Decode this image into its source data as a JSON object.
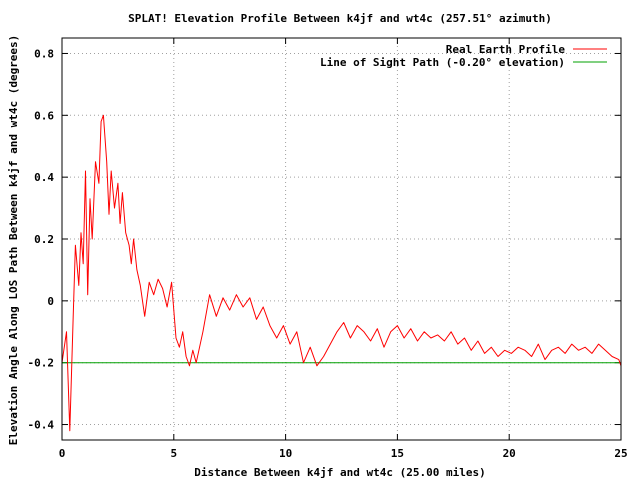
{
  "chart_data": {
    "type": "line",
    "title": "SPLAT! Elevation Profile Between k4jf and wt4c (257.51° azimuth)",
    "xlabel": "Distance Between k4jf and wt4c (25.00 miles)",
    "ylabel": "Elevation Angle Along LOS Path Between k4jf and wt4c (degrees)",
    "xlim": [
      0,
      25
    ],
    "ylim": [
      -0.45,
      0.85
    ],
    "x_ticks": [
      0,
      5,
      10,
      15,
      20,
      25
    ],
    "y_ticks": [
      -0.4,
      -0.2,
      0,
      0.2,
      0.4,
      0.6,
      0.8
    ],
    "x_tick_labels": [
      "0",
      "5",
      "10",
      "15",
      "20",
      "25"
    ],
    "y_tick_labels": [
      "-0.4",
      "-0.2",
      "0",
      "0.2",
      "0.4",
      "0.6",
      "0.8"
    ],
    "grid": true,
    "legend_position": "top-right",
    "series": [
      {
        "name": "Real Earth Profile",
        "color": "#ff0000",
        "x": [
          0.0,
          0.2,
          0.35,
          0.5,
          0.6,
          0.75,
          0.85,
          0.95,
          1.05,
          1.15,
          1.25,
          1.35,
          1.5,
          1.65,
          1.75,
          1.85,
          2.0,
          2.1,
          2.2,
          2.35,
          2.5,
          2.6,
          2.7,
          2.85,
          3.0,
          3.1,
          3.2,
          3.35,
          3.5,
          3.7,
          3.9,
          4.1,
          4.3,
          4.5,
          4.7,
          4.9,
          5.1,
          5.25,
          5.4,
          5.55,
          5.7,
          5.85,
          6.0,
          6.3,
          6.6,
          6.9,
          7.2,
          7.5,
          7.8,
          8.1,
          8.4,
          8.7,
          9.0,
          9.3,
          9.6,
          9.9,
          10.2,
          10.5,
          10.8,
          11.1,
          11.4,
          11.7,
          12.0,
          12.3,
          12.6,
          12.9,
          13.2,
          13.5,
          13.8,
          14.1,
          14.4,
          14.7,
          15.0,
          15.3,
          15.6,
          15.9,
          16.2,
          16.5,
          16.8,
          17.1,
          17.4,
          17.7,
          18.0,
          18.3,
          18.6,
          18.9,
          19.2,
          19.5,
          19.8,
          20.1,
          20.4,
          20.7,
          21.0,
          21.3,
          21.6,
          21.9,
          22.2,
          22.5,
          22.8,
          23.1,
          23.4,
          23.7,
          24.0,
          24.3,
          24.6,
          24.9,
          25.0
        ],
        "y": [
          -0.2,
          -0.1,
          -0.42,
          -0.05,
          0.18,
          0.05,
          0.22,
          0.12,
          0.42,
          0.02,
          0.33,
          0.2,
          0.45,
          0.38,
          0.58,
          0.6,
          0.45,
          0.28,
          0.42,
          0.3,
          0.38,
          0.25,
          0.35,
          0.22,
          0.18,
          0.12,
          0.2,
          0.1,
          0.05,
          -0.05,
          0.06,
          0.02,
          0.07,
          0.04,
          -0.02,
          0.06,
          -0.12,
          -0.15,
          -0.1,
          -0.18,
          -0.21,
          -0.16,
          -0.2,
          -0.1,
          0.02,
          -0.05,
          0.01,
          -0.03,
          0.02,
          -0.02,
          0.01,
          -0.06,
          -0.02,
          -0.08,
          -0.12,
          -0.08,
          -0.14,
          -0.1,
          -0.2,
          -0.15,
          -0.21,
          -0.18,
          -0.14,
          -0.1,
          -0.07,
          -0.12,
          -0.08,
          -0.1,
          -0.13,
          -0.09,
          -0.15,
          -0.1,
          -0.08,
          -0.12,
          -0.09,
          -0.13,
          -0.1,
          -0.12,
          -0.11,
          -0.13,
          -0.1,
          -0.14,
          -0.12,
          -0.16,
          -0.13,
          -0.17,
          -0.15,
          -0.18,
          -0.16,
          -0.17,
          -0.15,
          -0.16,
          -0.18,
          -0.14,
          -0.19,
          -0.16,
          -0.15,
          -0.17,
          -0.14,
          -0.16,
          -0.15,
          -0.17,
          -0.14,
          -0.16,
          -0.18,
          -0.19,
          -0.21
        ]
      },
      {
        "name": "Line of Sight Path (-0.20° elevation)",
        "color": "#00a000",
        "x": [
          0,
          25
        ],
        "y": [
          -0.2,
          -0.2
        ]
      }
    ]
  }
}
